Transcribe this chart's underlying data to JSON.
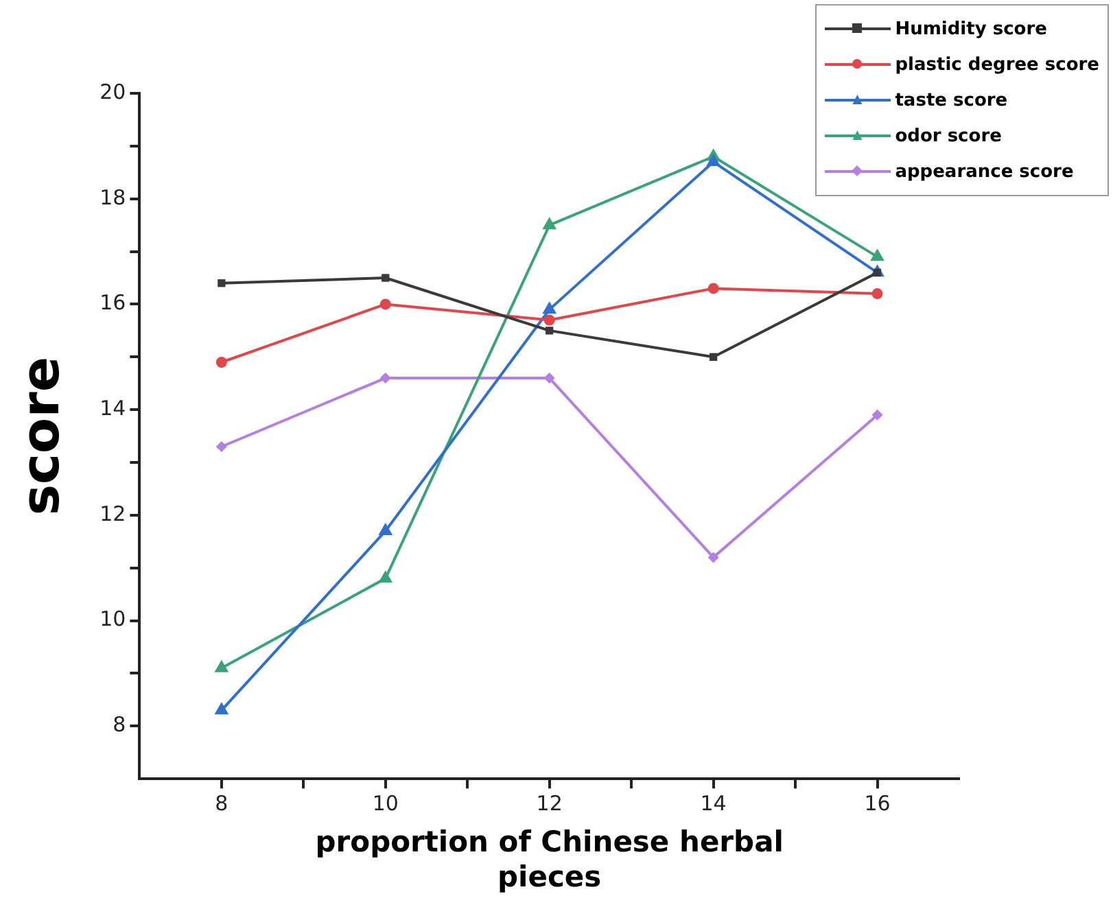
{
  "chart_data": {
    "type": "line",
    "xlabel": "proportion of Chinese herbal pieces",
    "ylabel": "score",
    "x": [
      8,
      10,
      12,
      14,
      16
    ],
    "series": [
      {
        "name": "Humidity score",
        "color": "#3a3a3a",
        "marker": "square",
        "values": [
          16.4,
          16.5,
          15.5,
          15.0,
          16.6
        ]
      },
      {
        "name": "plastic degree score",
        "color": "#e0474c",
        "marker": "circle",
        "values": [
          14.9,
          16.0,
          15.7,
          16.3,
          16.2
        ]
      },
      {
        "name": "taste score",
        "color": "#2f6fd0",
        "marker": "triangle",
        "values": [
          8.3,
          11.7,
          15.9,
          18.7,
          16.6
        ]
      },
      {
        "name": "odor score",
        "color": "#3aa37a",
        "marker": "triangle",
        "values": [
          9.1,
          10.8,
          17.5,
          18.8,
          16.9
        ]
      },
      {
        "name": "appearance score",
        "color": "#b47fe0",
        "marker": "diamond",
        "values": [
          13.3,
          14.6,
          14.6,
          11.2,
          13.9
        ]
      }
    ],
    "xlim": [
      7,
      17
    ],
    "xticks": [
      8,
      {
        "value": 9,
        "label": null
      },
      10,
      {
        "value": 11,
        "label": null
      },
      12,
      {
        "value": 13,
        "label": null
      },
      14,
      {
        "value": 15,
        "label": null
      },
      16
    ],
    "ylim": [
      7,
      20
    ],
    "yticks": [
      8,
      {
        "value": 9,
        "label": null
      },
      10,
      {
        "value": 11,
        "label": null
      },
      12,
      {
        "value": 13,
        "label": null
      },
      14,
      {
        "value": 15,
        "label": null
      },
      16,
      {
        "value": 17,
        "label": null
      },
      18,
      {
        "value": 19,
        "label": null
      },
      20
    ],
    "grid": false,
    "legend": "top right"
  }
}
